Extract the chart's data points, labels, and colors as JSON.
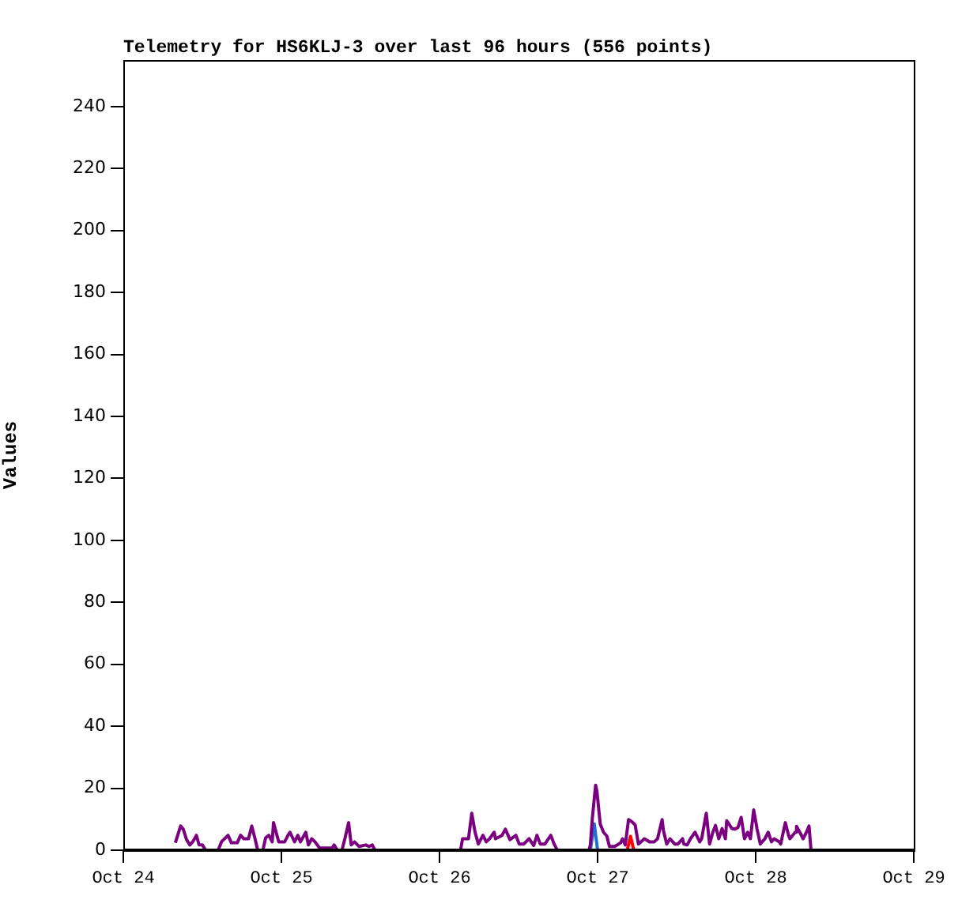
{
  "chart_data": {
    "type": "line",
    "title": "Telemetry for HS6KLJ-3 over last 96 hours (556 points)",
    "ylabel": "Values",
    "xlim": [
      "--10-24",
      "--10-29"
    ],
    "xticks": [
      {
        "value": "--10-24",
        "label": "Oct 24"
      },
      {
        "value": "--10-25",
        "label": "Oct 25"
      },
      {
        "value": "--10-26",
        "label": "Oct 26"
      },
      {
        "value": "--10-27",
        "label": "Oct 27"
      },
      {
        "value": "--10-28",
        "label": "Oct 28"
      },
      {
        "value": "--10-29",
        "label": "Oct 29"
      }
    ],
    "ylim": [
      0,
      255
    ],
    "yticks": [
      0,
      20,
      40,
      60,
      80,
      100,
      120,
      140,
      160,
      180,
      200,
      220,
      240
    ],
    "legend": false,
    "series": [
      {
        "color": "#7b0080",
        "x": [
          "--10-24T07:54",
          "--10-24T08:42",
          "--10-24T09:06",
          "--10-24T09:36",
          "--10-24T10:06",
          "--10-24T10:36",
          "--10-24T11:06",
          "--10-24T11:30",
          "--10-24T12:00",
          "--10-24T12:30",
          "--10-24T14:24",
          "--10-24T14:54",
          "--10-24T15:54",
          "--10-24T16:24",
          "--10-24T17:18",
          "--10-24T17:48",
          "--10-24T18:18",
          "--10-24T19:00",
          "--10-24T19:30",
          "--10-24T20:00",
          "--10-24T20:24",
          "--10-24T21:12",
          "--10-24T21:36",
          "--10-24T22:06",
          "--10-24T22:36",
          "--10-24T22:48",
          "--10-24T23:36",
          "--10-25T00:30",
          "--10-25T01:00",
          "--10-25T01:18",
          "--10-25T02:00",
          "--10-25T02:30",
          "--10-25T02:54",
          "--10-25T03:42",
          "--10-25T04:06",
          "--10-25T04:36",
          "--10-25T05:06",
          "--10-25T05:48",
          "--10-25T07:42",
          "--10-25T08:00",
          "--10-25T08:30",
          "--10-25T09:12",
          "--10-25T09:24",
          "--10-25T09:42",
          "--10-25T10:12",
          "--10-25T10:36",
          "--10-25T11:06",
          "--10-25T11:48",
          "--10-25T12:48",
          "--10-25T13:18",
          "--10-25T13:48",
          "--10-25T14:12",
          "--10-26T03:12",
          "--10-26T03:30",
          "--10-26T04:24",
          "--10-26T04:54",
          "--10-26T05:24",
          "--10-26T05:54",
          "--10-26T06:36",
          "--10-26T07:06",
          "--10-26T07:36",
          "--10-26T08:18",
          "--10-26T08:30",
          "--10-26T09:30",
          "--10-26T10:00",
          "--10-26T10:42",
          "--10-26T11:36",
          "--10-26T12:06",
          "--10-26T12:48",
          "--10-26T13:36",
          "--10-26T14:18",
          "--10-26T14:48",
          "--10-26T15:18",
          "--10-26T16:00",
          "--10-26T16:54",
          "--10-26T17:24",
          "--10-26T17:54",
          "--10-26T22:42",
          "--10-26T22:54",
          "--10-26T23:12",
          "--10-26T23:42",
          "--10-26T23:54",
          "--10-27T00:24",
          "--10-27T00:54",
          "--10-27T01:24",
          "--10-27T01:48",
          "--10-27T02:36",
          "--10-27T03:30",
          "--10-27T03:48",
          "--10-27T04:12",
          "--10-27T04:42",
          "--10-27T05:12",
          "--10-27T05:42",
          "--10-27T06:12",
          "--10-27T06:36",
          "--10-27T07:06",
          "--10-27T07:54",
          "--10-27T08:36",
          "--10-27T09:06",
          "--10-27T09:48",
          "--10-27T10:00",
          "--10-27T10:30",
          "--10-27T11:00",
          "--10-27T11:42",
          "--10-27T12:12",
          "--10-27T12:54",
          "--10-27T13:06",
          "--10-27T13:36",
          "--10-27T14:06",
          "--10-27T14:48",
          "--10-27T15:30",
          "--10-27T15:48",
          "--10-27T16:30",
          "--10-27T17:00",
          "--10-27T17:30",
          "--10-27T17:54",
          "--10-27T18:24",
          "--10-27T18:54",
          "--10-27T19:24",
          "--10-27T19:36",
          "--10-27T20:24",
          "--10-27T20:48",
          "--10-27T21:18",
          "--10-27T21:48",
          "--10-27T22:18",
          "--10-27T22:48",
          "--10-27T23:12",
          "--10-27T23:42",
          "--10-28T00:12",
          "--10-28T00:42",
          "--10-28T01:24",
          "--10-28T01:54",
          "--10-28T02:24",
          "--10-28T02:48",
          "--10-28T03:36",
          "--10-28T03:48",
          "--10-28T04:30",
          "--10-28T05:00",
          "--10-28T05:12",
          "--10-28T06:00",
          "--10-28T06:12",
          "--10-28T06:42",
          "--10-28T07:12",
          "--10-28T07:42",
          "--10-28T08:06",
          "--10-28T08:24"
        ],
        "values": [
          2.4,
          7.8,
          6.8,
          3.4,
          1.7,
          2.9,
          4.8,
          1.7,
          1.7,
          0,
          0,
          2.7,
          4.8,
          2.4,
          2.4,
          4.8,
          3.7,
          3.7,
          7.8,
          3.7,
          0,
          0,
          4,
          4.8,
          2.7,
          8.9,
          2.7,
          2.7,
          4.8,
          5.8,
          2.7,
          4.8,
          2.7,
          5.8,
          1.7,
          3.7,
          2.7,
          0.7,
          0.7,
          1.7,
          0,
          0,
          1.7,
          4.3,
          8.9,
          1.7,
          2.7,
          1.2,
          1.7,
          1.2,
          1.7,
          0,
          0,
          3.7,
          3.7,
          11.9,
          5.8,
          2,
          4.8,
          2.7,
          3.7,
          5.8,
          3.7,
          4.8,
          6.8,
          3.4,
          4.8,
          2,
          2,
          3.7,
          1.5,
          4.8,
          2,
          2,
          4.8,
          2,
          0,
          0,
          1.7,
          10.2,
          21,
          19,
          8.5,
          5.8,
          4.6,
          1.2,
          1.2,
          2.4,
          3.7,
          1.7,
          9.9,
          9.2,
          8.2,
          2,
          2.7,
          3.7,
          2.7,
          2.7,
          3.7,
          9.9,
          6.3,
          2,
          3.7,
          2,
          2,
          3.7,
          2,
          1.7,
          3.7,
          5.8,
          2.7,
          3.7,
          11.9,
          2,
          5.8,
          8,
          3.7,
          7,
          3.7,
          9.5,
          7,
          6.8,
          7.3,
          10.6,
          3.7,
          5.8,
          3.7,
          13,
          7,
          2,
          3.7,
          5.8,
          2.7,
          3.7,
          2.7,
          2,
          8.9,
          4.8,
          3.7,
          5.8,
          7.7,
          5.8,
          3.7,
          5.8,
          7.8,
          0
        ]
      },
      {
        "color": "#1e6fd0",
        "x": [
          "--10-26T22:54",
          "--10-26T23:30",
          "--10-27T00:00"
        ],
        "values": [
          0,
          8.5,
          0
        ]
      },
      {
        "color": "#ff0000",
        "x": [
          "--10-27T04:30",
          "--10-27T05:00",
          "--10-27T05:30"
        ],
        "values": [
          0,
          4.5,
          0
        ]
      }
    ]
  }
}
